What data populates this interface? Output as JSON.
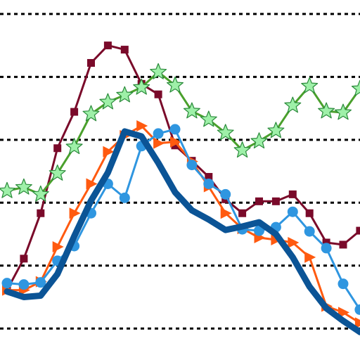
{
  "chart_data": {
    "type": "line",
    "title": "",
    "xlabel": "",
    "ylabel": "",
    "grid": true,
    "grid_style": "dotted-horizontal",
    "legend": "none",
    "x": [
      0,
      1,
      2,
      3,
      4,
      5,
      6,
      7,
      8,
      9,
      10,
      11,
      12,
      13,
      14,
      15,
      16,
      17,
      18,
      19,
      20,
      21
    ],
    "ylim": [
      0,
      5.15
    ],
    "gridlines": [
      0.45,
      1.35,
      2.25,
      3.15,
      4.05,
      4.95
    ],
    "series": [
      {
        "color": "#7a0a2a",
        "marker": "square",
        "values": [
          1.0,
          1.45,
          2.1,
          3.03,
          3.55,
          4.25,
          4.5,
          4.44,
          3.95,
          3.8,
          3.07,
          2.85,
          2.62,
          2.3,
          2.1,
          2.27,
          2.27,
          2.37,
          2.1,
          1.68,
          1.65,
          1.85
        ]
      },
      {
        "color": "#4aa02c",
        "marker": "star",
        "values": [
          2.42,
          2.47,
          2.37,
          2.67,
          3.05,
          3.52,
          3.69,
          3.79,
          3.9,
          4.12,
          3.93,
          3.56,
          3.44,
          3.25,
          3.0,
          3.13,
          3.28,
          3.64,
          3.92,
          3.56,
          3.54,
          3.88
        ]
      },
      {
        "color": "#ff5a10",
        "marker": "triangle-right",
        "values": [
          1.0,
          1.0,
          1.12,
          1.62,
          2.1,
          2.52,
          2.98,
          3.21,
          3.35,
          3.1,
          3.12,
          2.84,
          2.48,
          2.1,
          1.88,
          1.75,
          1.72,
          1.68,
          1.47,
          0.77,
          0.68,
          0.53
        ]
      },
      {
        "color": "#2f96e0",
        "marker": "circle",
        "values": [
          1.1,
          1.08,
          1.11,
          1.42,
          1.63,
          2.1,
          2.52,
          2.32,
          3.06,
          3.24,
          3.3,
          2.79,
          2.52,
          2.37,
          1.87,
          1.85,
          1.9,
          2.12,
          1.84,
          1.6,
          1.09,
          0.72
        ]
      },
      {
        "color": "#0b5496",
        "marker": "none",
        "thick": true,
        "values": [
          0.98,
          0.9,
          0.92,
          1.23,
          1.77,
          2.28,
          2.68,
          3.27,
          3.2,
          2.82,
          2.4,
          2.14,
          2.01,
          1.86,
          1.91,
          1.97,
          1.8,
          1.47,
          1.05,
          0.74,
          0.56,
          0.4
        ]
      }
    ]
  }
}
